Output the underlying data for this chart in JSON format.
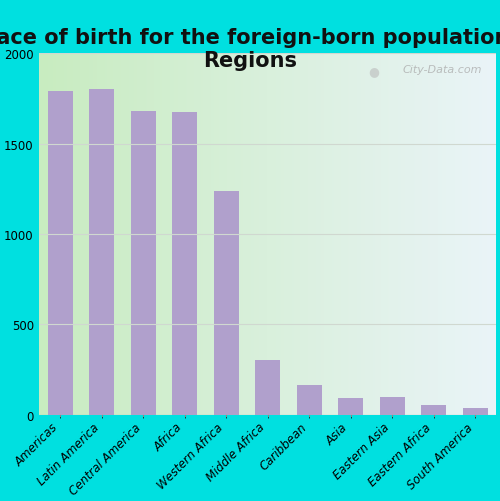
{
  "title": "Place of birth for the foreign-born population -\nRegions",
  "categories": [
    "Americas",
    "Latin America",
    "Central America",
    "Africa",
    "Western Africa",
    "Middle Africa",
    "Caribbean",
    "Asia",
    "Eastern Asia",
    "Eastern Africa",
    "South America"
  ],
  "values": [
    1790,
    1800,
    1680,
    1675,
    1240,
    305,
    165,
    90,
    95,
    55,
    38
  ],
  "bar_color": "#b0a0cc",
  "bg_color_left": "#c8ecc0",
  "bg_color_right": "#eaf4f8",
  "outer_bg": "#00e0e0",
  "ylim": [
    0,
    2000
  ],
  "yticks": [
    0,
    500,
    1000,
    1500,
    2000
  ],
  "title_fontsize": 15,
  "tick_fontsize": 8.5,
  "watermark": "City-Data.com",
  "grid_color": "#d0d8d0"
}
